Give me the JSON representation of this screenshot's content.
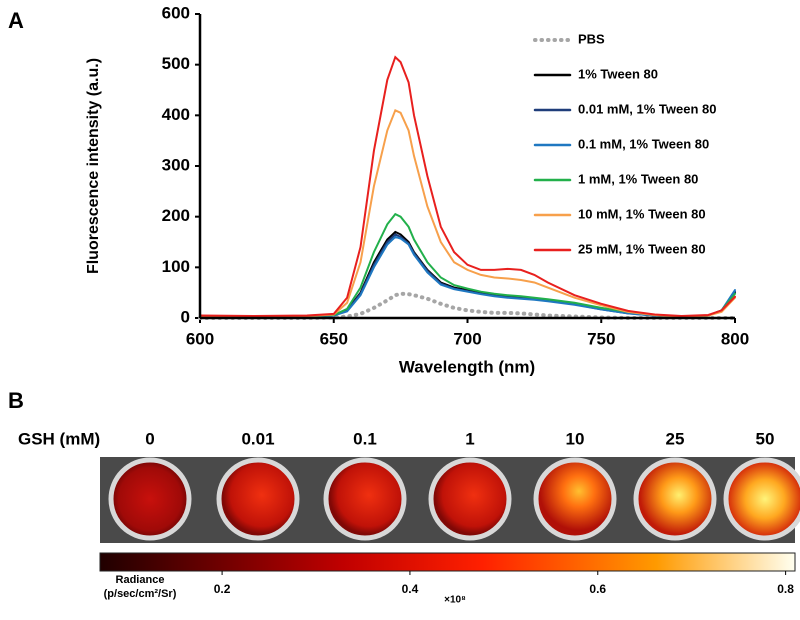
{
  "chart_data": {
    "type": "line",
    "panel": "A",
    "xlabel": "Wavelength (nm)",
    "ylabel": "Fluorescence intensity (a.u.)",
    "x": [
      600,
      620,
      640,
      650,
      655,
      660,
      665,
      670,
      673,
      675,
      678,
      680,
      685,
      690,
      695,
      700,
      705,
      710,
      715,
      720,
      725,
      730,
      740,
      750,
      760,
      770,
      780,
      790,
      795,
      800
    ],
    "xlim": [
      600,
      800
    ],
    "xticks": [
      600,
      650,
      700,
      750,
      800
    ],
    "ylim": [
      0,
      600
    ],
    "yticks": [
      0,
      100,
      200,
      300,
      400,
      500,
      600
    ],
    "series": [
      {
        "name": "PBS",
        "color": "#a6a6a6",
        "style": "dotted",
        "values": [
          0,
          0,
          0,
          1,
          3,
          8,
          20,
          35,
          45,
          48,
          47,
          45,
          38,
          28,
          20,
          15,
          12,
          10,
          10,
          9,
          7,
          5,
          3,
          1,
          0,
          0,
          0,
          0,
          0,
          0
        ]
      },
      {
        "name": "1% Tween 80",
        "color": "#000000",
        "style": "solid",
        "values": [
          3,
          2,
          3,
          5,
          15,
          50,
          110,
          155,
          170,
          165,
          150,
          130,
          95,
          70,
          60,
          55,
          50,
          45,
          42,
          40,
          38,
          35,
          28,
          18,
          10,
          5,
          3,
          5,
          15,
          50
        ]
      },
      {
        "name": "0.01 mM, 1% Tween 80",
        "color": "#1f3d7a",
        "style": "solid",
        "values": [
          3,
          2,
          3,
          5,
          14,
          48,
          105,
          150,
          165,
          160,
          147,
          128,
          93,
          68,
          58,
          53,
          48,
          44,
          41,
          39,
          37,
          34,
          27,
          17,
          9,
          5,
          3,
          5,
          15,
          52
        ]
      },
      {
        "name": "0.1 mM, 1% Tween 80",
        "color": "#1f78c1",
        "style": "solid",
        "values": [
          3,
          2,
          3,
          5,
          13,
          45,
          100,
          145,
          160,
          157,
          145,
          125,
          90,
          66,
          57,
          52,
          47,
          43,
          40,
          38,
          36,
          33,
          26,
          17,
          9,
          5,
          3,
          5,
          15,
          55
        ]
      },
      {
        "name": "1 mM, 1% Tween 80",
        "color": "#22b04b",
        "style": "solid",
        "values": [
          4,
          3,
          4,
          6,
          18,
          60,
          130,
          185,
          205,
          200,
          180,
          155,
          110,
          80,
          65,
          58,
          52,
          48,
          45,
          43,
          40,
          37,
          30,
          20,
          12,
          6,
          3,
          5,
          15,
          48
        ]
      },
      {
        "name": "10 mM, 1% Tween 80",
        "color": "#f7a04b",
        "style": "solid",
        "values": [
          4,
          3,
          4,
          7,
          30,
          110,
          260,
          370,
          410,
          405,
          370,
          320,
          220,
          150,
          110,
          95,
          85,
          80,
          78,
          75,
          70,
          60,
          40,
          25,
          12,
          6,
          3,
          5,
          12,
          40
        ]
      },
      {
        "name": "25 mM, 1% Tween 80",
        "color": "#e8201e",
        "style": "solid",
        "values": [
          5,
          4,
          5,
          8,
          40,
          140,
          330,
          470,
          515,
          505,
          465,
          400,
          280,
          180,
          130,
          105,
          95,
          95,
          97,
          95,
          85,
          70,
          45,
          28,
          14,
          7,
          4,
          6,
          15,
          42
        ]
      }
    ]
  },
  "panel_b": {
    "panel": "B",
    "row_label": "GSH (mM)",
    "concentrations": [
      "0",
      "0.01",
      "0.1",
      "1",
      "10",
      "25",
      "50"
    ],
    "colorbar": {
      "label": [
        "Radiance",
        "(p/sec/cm²/Sr)"
      ],
      "multiplier": "×10⁸",
      "lim": [
        0.07,
        0.81
      ],
      "ticks": [
        0.2,
        0.4,
        0.6,
        0.8
      ]
    }
  }
}
